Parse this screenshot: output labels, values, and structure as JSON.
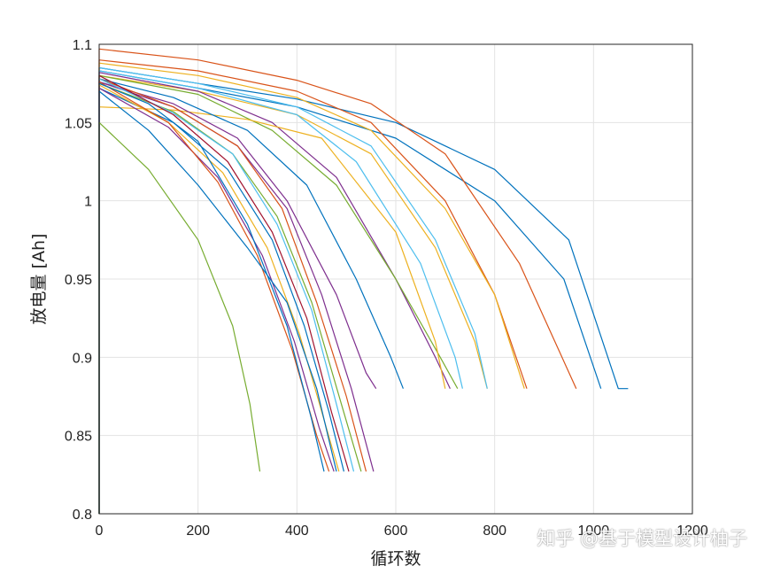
{
  "chart_data": {
    "type": "line",
    "xlabel": "循环数",
    "ylabel": "放电量 [Ah]",
    "xlim": [
      0,
      1200
    ],
    "ylim": [
      0.8,
      1.1
    ],
    "xticks": [
      0,
      200,
      400,
      600,
      800,
      1000,
      1200
    ],
    "yticks": [
      0.8,
      0.85,
      0.9,
      0.95,
      1,
      1.05,
      1.1
    ],
    "xtick_labels": [
      "0",
      "200",
      "400",
      "600",
      "800",
      "1000",
      "1200"
    ],
    "ytick_labels": [
      "0.8",
      "0.85",
      "0.9",
      "0.95",
      "1",
      "1.05",
      "1.1"
    ],
    "grid": true,
    "series": [
      {
        "color": "#0072BD",
        "x": [
          0,
          200,
          400,
          600,
          800,
          950,
          1050,
          1070
        ],
        "y": [
          1.085,
          1.075,
          1.065,
          1.05,
          1.02,
          0.975,
          0.88,
          0.88
        ]
      },
      {
        "color": "#0072BD",
        "x": [
          0,
          200,
          400,
          600,
          800,
          940,
          1015
        ],
        "y": [
          1.083,
          1.072,
          1.06,
          1.04,
          1.0,
          0.95,
          0.88
        ]
      },
      {
        "color": "#D95319",
        "x": [
          0,
          200,
          400,
          550,
          700,
          850,
          965
        ],
        "y": [
          1.097,
          1.09,
          1.077,
          1.062,
          1.03,
          0.96,
          0.88
        ]
      },
      {
        "color": "#D95319",
        "x": [
          0,
          200,
          400,
          550,
          700,
          800,
          865
        ],
        "y": [
          1.09,
          1.083,
          1.07,
          1.05,
          1.0,
          0.94,
          0.88
        ]
      },
      {
        "color": "#EDB120",
        "x": [
          0,
          200,
          400,
          550,
          700,
          800,
          860
        ],
        "y": [
          1.088,
          1.08,
          1.066,
          1.045,
          0.995,
          0.94,
          0.88
        ]
      },
      {
        "color": "#EDB120",
        "x": [
          0,
          200,
          400,
          550,
          680,
          760,
          785
        ],
        "y": [
          1.08,
          1.07,
          1.055,
          1.03,
          0.97,
          0.91,
          0.88
        ]
      },
      {
        "color": "#4DBEEE",
        "x": [
          0,
          200,
          400,
          550,
          680,
          760,
          785
        ],
        "y": [
          1.085,
          1.075,
          1.06,
          1.035,
          0.975,
          0.915,
          0.88
        ]
      },
      {
        "color": "#4DBEEE",
        "x": [
          0,
          200,
          400,
          520,
          650,
          720,
          735
        ],
        "y": [
          1.083,
          1.072,
          1.055,
          1.025,
          0.96,
          0.9,
          0.88
        ]
      },
      {
        "color": "#7E2F8E",
        "x": [
          0,
          200,
          350,
          480,
          600,
          680,
          710
        ],
        "y": [
          1.082,
          1.07,
          1.05,
          1.015,
          0.95,
          0.9,
          0.88
        ]
      },
      {
        "color": "#77AC30",
        "x": [
          0,
          200,
          350,
          480,
          600,
          690,
          725
        ],
        "y": [
          1.08,
          1.068,
          1.045,
          1.01,
          0.95,
          0.9,
          0.88
        ]
      },
      {
        "color": "#EDB120",
        "x": [
          0,
          150,
          300,
          450,
          600,
          680,
          700
        ],
        "y": [
          1.06,
          1.058,
          1.052,
          1.04,
          0.98,
          0.91,
          0.88
        ]
      },
      {
        "color": "#0072BD",
        "x": [
          0,
          150,
          300,
          420,
          520,
          590,
          615
        ],
        "y": [
          1.078,
          1.066,
          1.045,
          1.01,
          0.95,
          0.9,
          0.88
        ]
      },
      {
        "color": "#7E2F8E",
        "x": [
          0,
          150,
          280,
          380,
          480,
          540,
          560
        ],
        "y": [
          1.076,
          1.062,
          1.04,
          1.0,
          0.94,
          0.89,
          0.88
        ]
      },
      {
        "color": "#7E2F8E",
        "x": [
          0,
          150,
          280,
          380,
          450,
          510,
          555
        ],
        "y": [
          1.076,
          1.06,
          1.035,
          0.995,
          0.94,
          0.88,
          0.827
        ]
      },
      {
        "color": "#D95319",
        "x": [
          0,
          150,
          280,
          370,
          440,
          500,
          540
        ],
        "y": [
          1.078,
          1.06,
          1.035,
          0.995,
          0.935,
          0.875,
          0.827
        ]
      },
      {
        "color": "#77AC30",
        "x": [
          0,
          150,
          270,
          360,
          430,
          490,
          530
        ],
        "y": [
          1.075,
          1.057,
          1.03,
          0.99,
          0.935,
          0.87,
          0.827
        ]
      },
      {
        "color": "#4DBEEE",
        "x": [
          0,
          150,
          270,
          360,
          430,
          480,
          515
        ],
        "y": [
          1.078,
          1.056,
          1.03,
          0.985,
          0.93,
          0.87,
          0.827
        ]
      },
      {
        "color": "#A2142F",
        "x": [
          0,
          150,
          260,
          350,
          420,
          470,
          505
        ],
        "y": [
          1.08,
          1.055,
          1.025,
          0.98,
          0.925,
          0.865,
          0.827
        ]
      },
      {
        "color": "#0072BD",
        "x": [
          0,
          150,
          260,
          350,
          415,
          465,
          495
        ],
        "y": [
          1.072,
          1.05,
          1.02,
          0.975,
          0.92,
          0.865,
          0.827
        ]
      },
      {
        "color": "#EDB120",
        "x": [
          0,
          140,
          250,
          340,
          405,
          455,
          485
        ],
        "y": [
          1.074,
          1.05,
          1.018,
          0.97,
          0.915,
          0.86,
          0.827
        ]
      },
      {
        "color": "#7E2F8E",
        "x": [
          0,
          140,
          240,
          330,
          395,
          445,
          475
        ],
        "y": [
          1.072,
          1.047,
          1.015,
          0.965,
          0.91,
          0.855,
          0.827
        ]
      },
      {
        "color": "#D95319",
        "x": [
          0,
          140,
          240,
          320,
          390,
          440,
          465
        ],
        "y": [
          1.076,
          1.05,
          1.012,
          0.965,
          0.905,
          0.85,
          0.827
        ]
      },
      {
        "color": "#0072BD",
        "x": [
          0,
          100,
          200,
          300,
          380,
          430,
          455
        ],
        "y": [
          1.075,
          1.062,
          1.038,
          0.985,
          0.92,
          0.86,
          0.827
        ]
      },
      {
        "color": "#0072BD",
        "x": [
          0,
          100,
          200,
          300,
          380,
          440,
          480
        ],
        "y": [
          1.07,
          1.045,
          1.01,
          0.97,
          0.935,
          0.88,
          0.827
        ]
      },
      {
        "color": "#77AC30",
        "x": [
          0,
          100,
          200,
          270,
          305,
          325
        ],
        "y": [
          1.05,
          1.02,
          0.975,
          0.92,
          0.87,
          0.827
        ]
      }
    ]
  },
  "watermark": "知乎 @基于模型设计柚子"
}
